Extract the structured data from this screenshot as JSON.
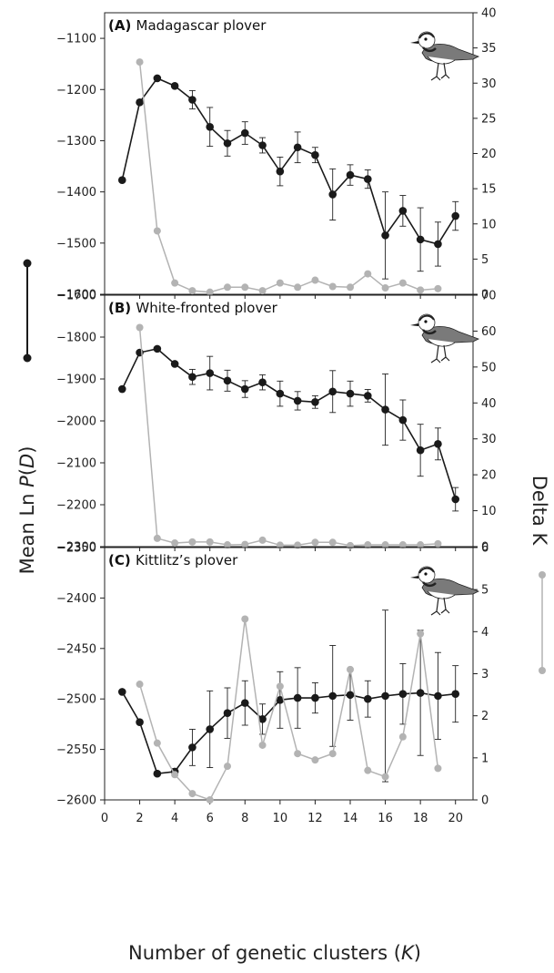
{
  "figure": {
    "xlabel_main": "Number of genetic clusters (",
    "xlabel_var": "K",
    "xlabel_end": ")",
    "ylabel_left_main": "Mean Ln ",
    "ylabel_left_var": "P",
    "ylabel_left_paren_open": "(",
    "ylabel_left_var2": "D",
    "ylabel_left_paren_close": ")",
    "ylabel_right": "Delta K",
    "x_ticks": [
      0,
      2,
      4,
      6,
      8,
      10,
      12,
      14,
      16,
      18,
      20
    ],
    "colors": {
      "mean_ln": "#1a1a1a",
      "delta_k": "#b3b3b3"
    }
  },
  "chart_data": [
    {
      "type": "line",
      "panel_letter": "(A)",
      "title": "Madagascar plover",
      "xlim": [
        0,
        21
      ],
      "ylim_left": [
        -1600,
        -1050
      ],
      "yticks_left": [
        -1100,
        -1200,
        -1300,
        -1400,
        -1500,
        -1600
      ],
      "ylim_right": [
        0,
        40
      ],
      "yticks_right": [
        0,
        5,
        10,
        15,
        20,
        25,
        30,
        35,
        40
      ],
      "series": [
        {
          "axis": "left",
          "x": [
            1,
            2,
            3,
            4,
            5,
            6,
            7,
            8,
            9,
            10,
            11,
            12,
            13,
            14,
            15,
            16,
            17,
            18,
            19,
            20
          ],
          "values": [
            -1377,
            -1225,
            -1178,
            -1193,
            -1220,
            -1273,
            -1305,
            -1285,
            -1309,
            -1360,
            -1313,
            -1328,
            -1405,
            -1367,
            -1375,
            -1485,
            -1437,
            -1493,
            -1502,
            -1447
          ],
          "error": [
            0,
            0,
            0,
            0,
            18,
            38,
            25,
            22,
            15,
            28,
            30,
            15,
            50,
            20,
            18,
            85,
            30,
            62,
            43,
            28
          ]
        },
        {
          "axis": "right",
          "x": [
            2,
            3,
            4,
            5,
            6,
            7,
            8,
            9,
            10,
            11,
            12,
            13,
            14,
            15,
            16,
            17,
            18,
            19
          ],
          "values": [
            33,
            9,
            1.6,
            0.5,
            0.3,
            1,
            1,
            0.5,
            1.6,
            1,
            2,
            1.1,
            1,
            2.9,
            0.9,
            1.6,
            0.6,
            0.8
          ]
        }
      ]
    },
    {
      "type": "line",
      "panel_letter": "(B)",
      "title": "White-fronted plover",
      "xlim": [
        0,
        21
      ],
      "ylim_left": [
        -2300,
        -1700
      ],
      "yticks_left": [
        -1700,
        -1800,
        -1900,
        -2000,
        -2100,
        -2200,
        -2300
      ],
      "ylim_right": [
        0,
        70
      ],
      "yticks_right": [
        0,
        10,
        20,
        30,
        40,
        50,
        60,
        70
      ],
      "series": [
        {
          "axis": "left",
          "x": [
            1,
            2,
            3,
            4,
            5,
            6,
            7,
            8,
            9,
            10,
            11,
            12,
            13,
            14,
            15,
            16,
            17,
            18,
            19,
            20
          ],
          "values": [
            -1924,
            -1837,
            -1828,
            -1864,
            -1895,
            -1886,
            -1904,
            -1924,
            -1908,
            -1935,
            -1952,
            -1955,
            -1930,
            -1935,
            -1940,
            -1973,
            -1998,
            -2070,
            -2055,
            -2187
          ],
          "error": [
            0,
            0,
            0,
            0,
            18,
            40,
            25,
            20,
            18,
            30,
            22,
            15,
            50,
            30,
            15,
            85,
            48,
            62,
            38,
            28
          ]
        },
        {
          "axis": "right",
          "x": [
            2,
            3,
            4,
            5,
            6,
            7,
            8,
            9,
            10,
            11,
            12,
            13,
            14,
            15,
            16,
            17,
            18,
            19
          ],
          "values": [
            61,
            2.3,
            1,
            1.3,
            1.3,
            0.5,
            0.6,
            1.8,
            0.4,
            0.4,
            1.2,
            1.2,
            0.3,
            0.5,
            0.5,
            0.5,
            0.5,
            0.8
          ]
        }
      ]
    },
    {
      "type": "line",
      "panel_letter": "(C)",
      "title": "Kittlitz’s plover",
      "xlim": [
        0,
        21
      ],
      "ylim_left": [
        -2600,
        -2350
      ],
      "yticks_left": [
        -2350,
        -2400,
        -2450,
        -2500,
        -2550,
        -2600
      ],
      "ylim_right": [
        0,
        6
      ],
      "yticks_right": [
        0,
        1,
        2,
        3,
        4,
        5,
        6
      ],
      "series": [
        {
          "axis": "left",
          "x": [
            1,
            2,
            3,
            4,
            5,
            6,
            7,
            8,
            9,
            10,
            11,
            12,
            13,
            14,
            15,
            16,
            17,
            18,
            19,
            20
          ],
          "values": [
            -2493,
            -2523,
            -2574,
            -2572,
            -2548,
            -2530,
            -2514,
            -2504,
            -2520,
            -2501,
            -2499,
            -2499,
            -2497,
            -2496,
            -2500,
            -2497,
            -2495,
            -2494,
            -2497,
            -2495
          ],
          "error": [
            0,
            0,
            0,
            3,
            18,
            38,
            25,
            22,
            15,
            28,
            30,
            15,
            50,
            25,
            18,
            85,
            30,
            62,
            43,
            28
          ]
        },
        {
          "axis": "right",
          "x": [
            2,
            3,
            4,
            5,
            6,
            7,
            8,
            9,
            10,
            11,
            12,
            13,
            14,
            15,
            16,
            17,
            18,
            19
          ],
          "values": [
            2.75,
            1.35,
            0.6,
            0.15,
            0,
            0.8,
            4.3,
            1.3,
            2.7,
            1.1,
            0.95,
            1.1,
            3.1,
            0.7,
            0.55,
            1.5,
            3.95,
            0.75
          ]
        }
      ]
    }
  ]
}
